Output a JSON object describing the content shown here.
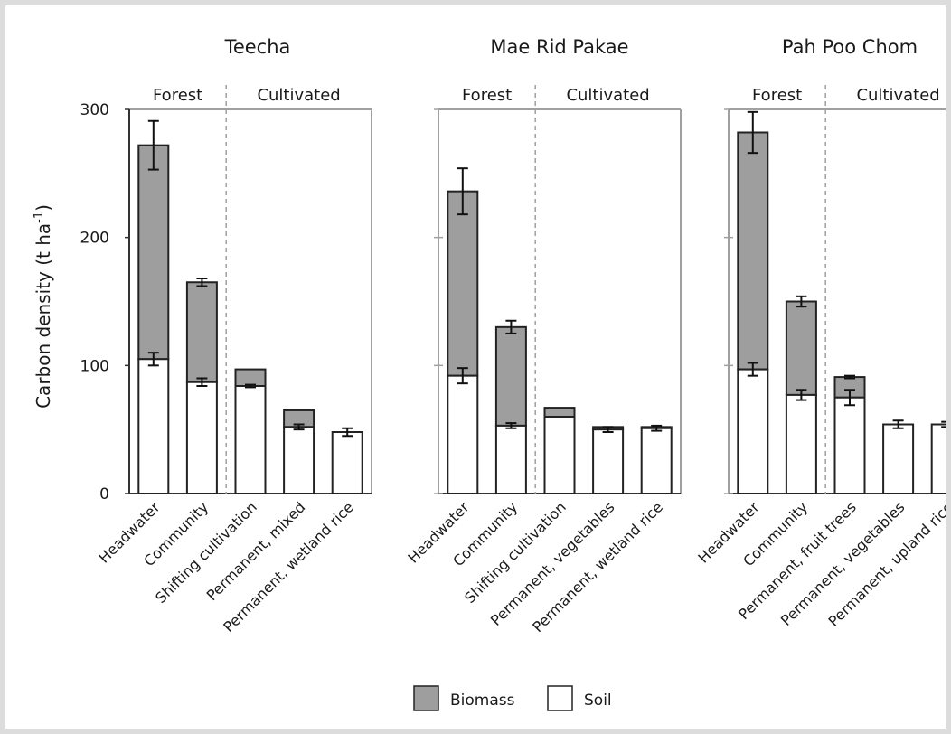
{
  "chart_data": {
    "type": "bar",
    "stacked": true,
    "ylabel": {
      "main": "Carbon density (t ha",
      "sup": "-1",
      "close": ")"
    },
    "ylim": [
      0,
      300
    ],
    "yticks": [
      "0",
      "100",
      "200",
      "300"
    ],
    "legend": {
      "position": "bottom-center",
      "entries": [
        {
          "label": "Biomass",
          "color": "#9e9e9e"
        },
        {
          "label": "Soil",
          "color": "#ffffff"
        }
      ]
    },
    "panels": [
      {
        "title": "Teecha",
        "groups": [
          "Forest",
          "Cultivated"
        ],
        "forest_count": 2,
        "categories": [
          "Headwater",
          "Community",
          "Shifting cultivation",
          "Permanent, mixed",
          "Permanent, wetland rice"
        ],
        "soil": [
          105,
          87,
          84,
          52,
          48
        ],
        "soil_err": [
          5,
          3,
          1,
          2,
          3
        ],
        "total": [
          272,
          165,
          97,
          65,
          48
        ],
        "total_err": [
          19,
          3,
          0,
          0,
          0
        ]
      },
      {
        "title": "Mae Rid Pakae",
        "groups": [
          "Forest",
          "Cultivated"
        ],
        "forest_count": 2,
        "categories": [
          "Headwater",
          "Community",
          "Shifting cultivation",
          "Permanent, vegetables",
          "Permanent, wetland rice"
        ],
        "soil": [
          92,
          53,
          60,
          50,
          51
        ],
        "soil_err": [
          6,
          2,
          0,
          2,
          2
        ],
        "total": [
          236,
          130,
          67,
          52,
          52
        ],
        "total_err": [
          18,
          5,
          0,
          0,
          0
        ]
      },
      {
        "title": "Pah Poo Chom",
        "groups": [
          "Forest",
          "Cultivated"
        ],
        "forest_count": 2,
        "categories": [
          "Headwater",
          "Community",
          "Permanent, fruit trees",
          "Permanent, vegetables",
          "Permanent, upland rice"
        ],
        "soil": [
          97,
          77,
          75,
          54,
          54
        ],
        "soil_err": [
          5,
          4,
          6,
          3,
          2
        ],
        "total": [
          282,
          150,
          91,
          54,
          54
        ],
        "total_err": [
          16,
          4,
          1,
          0,
          0
        ]
      }
    ]
  }
}
